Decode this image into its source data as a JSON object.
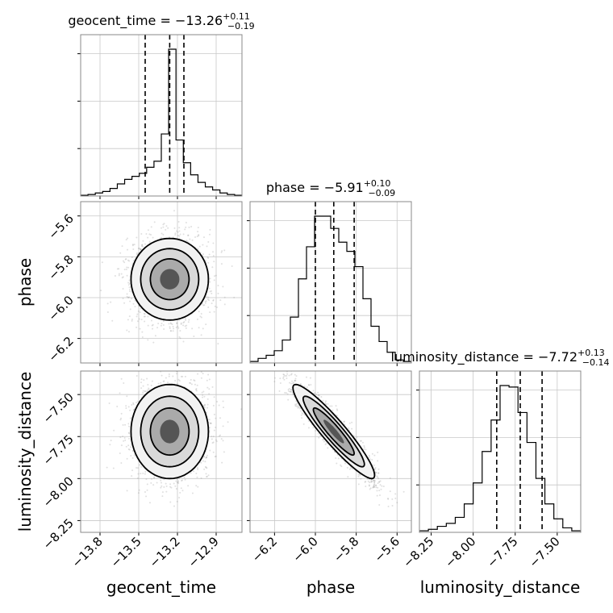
{
  "chart_data": {
    "type": "corner",
    "parameters": [
      "geocent_time",
      "phase",
      "luminosity_distance"
    ],
    "axis_labels": [
      "geocent_time",
      "phase",
      "luminosity_distance"
    ],
    "grid": true,
    "ranges": {
      "geocent_time": [
        -13.95,
        -12.7
      ],
      "phase": [
        -6.32,
        -5.53
      ],
      "luminosity_distance": [
        -8.32,
        -7.36
      ]
    },
    "ticks": {
      "geocent_time": {
        "values": [
          -13.8,
          -13.5,
          -13.2,
          -12.9
        ],
        "labels": [
          "−13.8",
          "−13.5",
          "−13.2",
          "−12.9"
        ]
      },
      "phase": {
        "values": [
          -6.2,
          -6.0,
          -5.8,
          -5.6
        ],
        "labels": [
          "−6.2",
          "−6.0",
          "−5.8",
          "−5.6"
        ]
      },
      "luminosity_distance": {
        "values": [
          -8.25,
          -8.0,
          -7.75,
          -7.5
        ],
        "labels": [
          "−8.25",
          "−8.00",
          "−7.75",
          "−7.50"
        ]
      }
    },
    "titles": [
      {
        "param": "geocent_time",
        "prefix": "geocent_time = ",
        "median": "−13.26",
        "plus": "+0.11",
        "minus": "−0.19"
      },
      {
        "param": "phase",
        "prefix": "phase = ",
        "median": "−5.91",
        "plus": "+0.10",
        "minus": "−0.09"
      },
      {
        "param": "luminosity_distance",
        "prefix": "luminosity_distance = ",
        "median": "−7.72",
        "plus": "+0.13",
        "minus": "−0.14"
      }
    ],
    "quantiles": {
      "geocent_time": [
        -13.45,
        -13.26,
        -13.15
      ],
      "phase": [
        -6.0,
        -5.91,
        -5.81
      ],
      "luminosity_distance": [
        -7.86,
        -7.72,
        -7.59
      ]
    },
    "histograms": {
      "geocent_time": {
        "range": [
          -13.95,
          -12.7
        ],
        "counts": [
          0.005,
          0.01,
          0.02,
          0.03,
          0.05,
          0.08,
          0.11,
          0.13,
          0.15,
          0.19,
          0.23,
          0.41,
          0.97,
          0.37,
          0.22,
          0.14,
          0.09,
          0.06,
          0.04,
          0.02,
          0.01,
          0.005
        ]
      },
      "phase": {
        "range": [
          -6.32,
          -5.53
        ],
        "counts": [
          0.01,
          0.03,
          0.05,
          0.08,
          0.15,
          0.3,
          0.55,
          0.76,
          0.96,
          0.96,
          0.88,
          0.79,
          0.73,
          0.63,
          0.42,
          0.24,
          0.14,
          0.07,
          0.02,
          0.01
        ]
      },
      "luminosity_distance": {
        "range": [
          -8.32,
          -7.36
        ],
        "counts": [
          0.01,
          0.02,
          0.04,
          0.06,
          0.1,
          0.19,
          0.33,
          0.54,
          0.75,
          0.98,
          0.97,
          0.8,
          0.6,
          0.36,
          0.19,
          0.09,
          0.03,
          0.01
        ]
      }
    },
    "posterior": {
      "means": [
        -13.26,
        -5.91,
        -7.72
      ],
      "sigmas": [
        0.15,
        0.1,
        0.14
      ],
      "correlations": {
        "phase|geocent_time": 0.0,
        "luminosity_distance|geocent_time": 0.0,
        "luminosity_distance|phase": -0.93
      }
    }
  }
}
